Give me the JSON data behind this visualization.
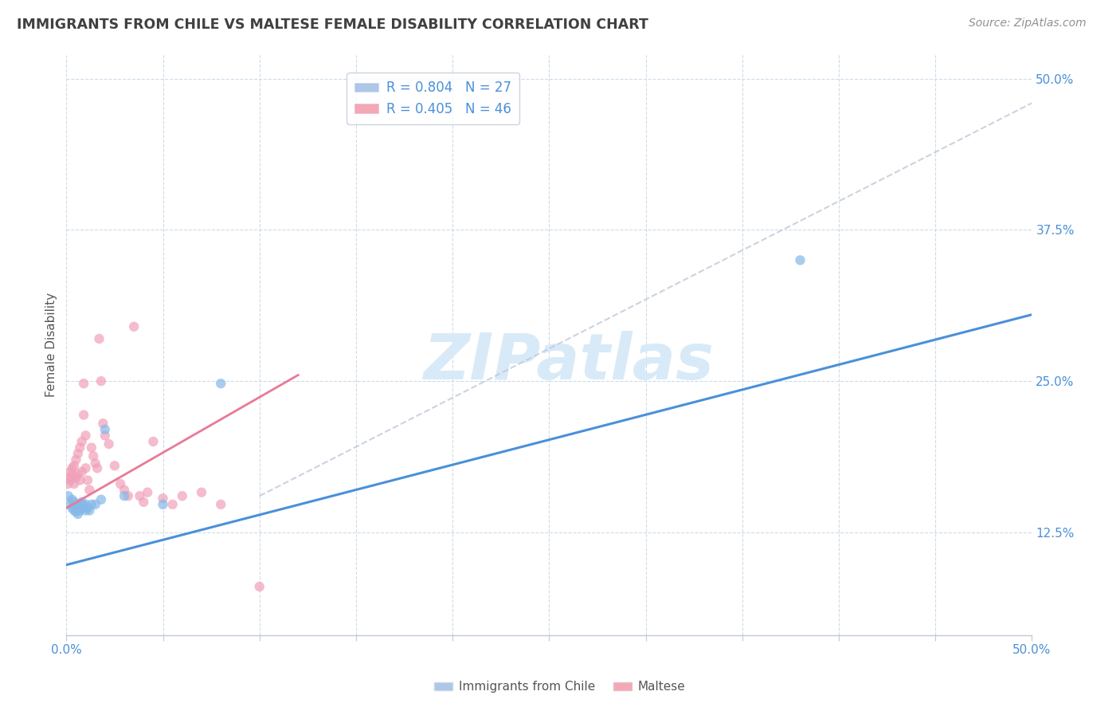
{
  "title": "IMMIGRANTS FROM CHILE VS MALTESE FEMALE DISABILITY CORRELATION CHART",
  "source_text": "Source: ZipAtlas.com",
  "ylabel": "Female Disability",
  "xlim": [
    0.0,
    0.5
  ],
  "ylim": [
    0.04,
    0.52
  ],
  "xticks": [
    0.0,
    0.05,
    0.1,
    0.15,
    0.2,
    0.25,
    0.3,
    0.35,
    0.4,
    0.45,
    0.5
  ],
  "yticks": [
    0.125,
    0.25,
    0.375,
    0.5
  ],
  "ytick_labels": [
    "12.5%",
    "25.0%",
    "37.5%",
    "50.0%"
  ],
  "watermark": "ZIPatlas",
  "watermark_color": "#d8eaf8",
  "blue_color": "#4a90d9",
  "pink_color": "#e87a95",
  "dot_blue_color": "#85b8e8",
  "dot_pink_color": "#f0a0b8",
  "grid_color": "#c8d8e8",
  "background_color": "#ffffff",
  "title_color": "#404040",
  "tick_label_color": "#4a90d9",
  "blue_scatter_x": [
    0.001,
    0.002,
    0.003,
    0.003,
    0.004,
    0.004,
    0.005,
    0.005,
    0.006,
    0.006,
    0.007,
    0.007,
    0.008,
    0.008,
    0.009,
    0.01,
    0.01,
    0.011,
    0.012,
    0.013,
    0.015,
    0.018,
    0.02,
    0.03,
    0.05,
    0.08,
    0.38
  ],
  "blue_scatter_y": [
    0.155,
    0.148,
    0.145,
    0.152,
    0.143,
    0.15,
    0.142,
    0.148,
    0.14,
    0.146,
    0.143,
    0.148,
    0.145,
    0.15,
    0.147,
    0.143,
    0.148,
    0.145,
    0.143,
    0.148,
    0.148,
    0.152,
    0.21,
    0.155,
    0.148,
    0.248,
    0.35
  ],
  "pink_scatter_x": [
    0.001,
    0.001,
    0.002,
    0.002,
    0.003,
    0.003,
    0.004,
    0.004,
    0.005,
    0.005,
    0.006,
    0.006,
    0.007,
    0.007,
    0.008,
    0.008,
    0.009,
    0.009,
    0.01,
    0.01,
    0.011,
    0.012,
    0.013,
    0.014,
    0.015,
    0.016,
    0.017,
    0.018,
    0.019,
    0.02,
    0.022,
    0.025,
    0.028,
    0.03,
    0.032,
    0.035,
    0.038,
    0.04,
    0.042,
    0.045,
    0.05,
    0.055,
    0.06,
    0.07,
    0.08,
    0.1
  ],
  "pink_scatter_y": [
    0.165,
    0.17,
    0.175,
    0.168,
    0.172,
    0.178,
    0.165,
    0.18,
    0.17,
    0.185,
    0.173,
    0.19,
    0.168,
    0.195,
    0.175,
    0.2,
    0.222,
    0.248,
    0.178,
    0.205,
    0.168,
    0.16,
    0.195,
    0.188,
    0.182,
    0.178,
    0.285,
    0.25,
    0.215,
    0.205,
    0.198,
    0.18,
    0.165,
    0.16,
    0.155,
    0.295,
    0.155,
    0.15,
    0.158,
    0.2,
    0.153,
    0.148,
    0.155,
    0.158,
    0.148,
    0.08
  ],
  "blue_line_x": [
    0.0,
    0.5
  ],
  "blue_line_y": [
    0.098,
    0.305
  ],
  "pink_line_x": [
    0.0,
    0.12
  ],
  "pink_line_y": [
    0.145,
    0.255
  ],
  "ref_line_x": [
    0.1,
    0.5
  ],
  "ref_line_y": [
    0.155,
    0.48
  ]
}
